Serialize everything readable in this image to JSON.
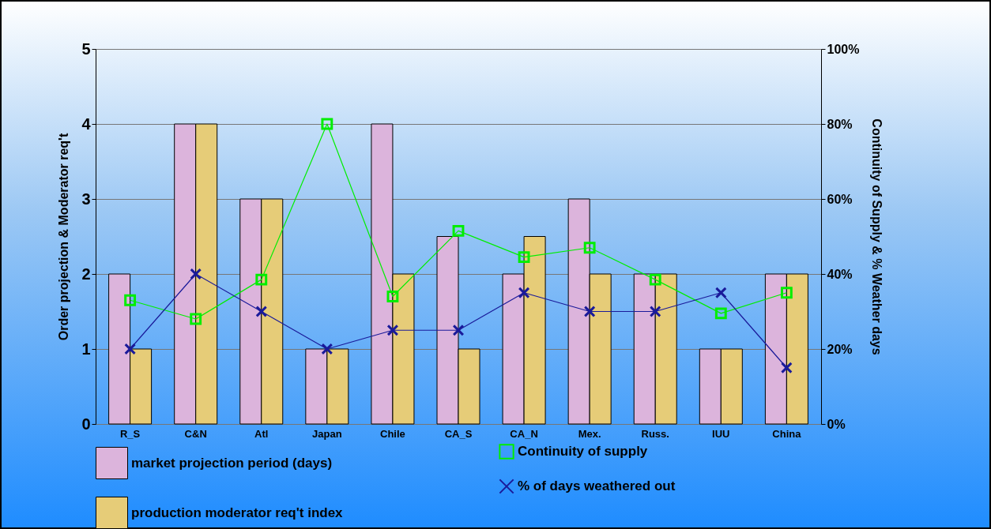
{
  "chart_data": {
    "type": "bar",
    "ylabel": "Order projection & Moderator req't",
    "y2label": "Continuity of Supply & % Weather days",
    "categories": [
      "R_S",
      "C&N",
      "Atl",
      "Japan",
      "Chile",
      "CA_S",
      "CA_N",
      "Mex.",
      "Russ.",
      "IUU",
      "China"
    ],
    "series": [
      {
        "name": "market projection period (days)",
        "color": "#dcb4dc",
        "values": [
          2,
          4,
          3,
          1,
          4,
          2.5,
          2,
          3,
          2,
          1,
          2
        ]
      },
      {
        "name": "production moderator req't index",
        "color": "#e6cc78",
        "values": [
          1,
          4,
          3,
          1,
          2,
          1,
          2.5,
          2,
          2,
          1,
          2
        ]
      },
      {
        "name": "Continuity of supply",
        "type": "line",
        "axis": "y2",
        "marker": "square",
        "color": "#00ee00",
        "values": [
          33,
          28,
          38.5,
          80,
          34,
          51.5,
          44.5,
          47,
          38.5,
          29.5,
          35
        ]
      },
      {
        "name": "% of days weathered out",
        "type": "line",
        "axis": "y2",
        "marker": "cross",
        "color": "#1a1a9a",
        "values": [
          20,
          40,
          30,
          20,
          25,
          25,
          35,
          30,
          30,
          35,
          15
        ]
      }
    ],
    "ylim": [
      0,
      5
    ],
    "yticks": [
      0,
      1,
      2,
      3,
      4,
      5
    ],
    "y2lim": [
      0,
      100
    ],
    "y2ticks": [
      {
        "value": 0,
        "label": "0%"
      },
      {
        "value": 20,
        "label": "20%"
      },
      {
        "value": 40,
        "label": "40%"
      },
      {
        "value": 60,
        "label": "60%"
      },
      {
        "value": 80,
        "label": "80%"
      },
      {
        "value": 100,
        "label": "100%"
      }
    ],
    "grid": "y",
    "legend": "bottom"
  }
}
